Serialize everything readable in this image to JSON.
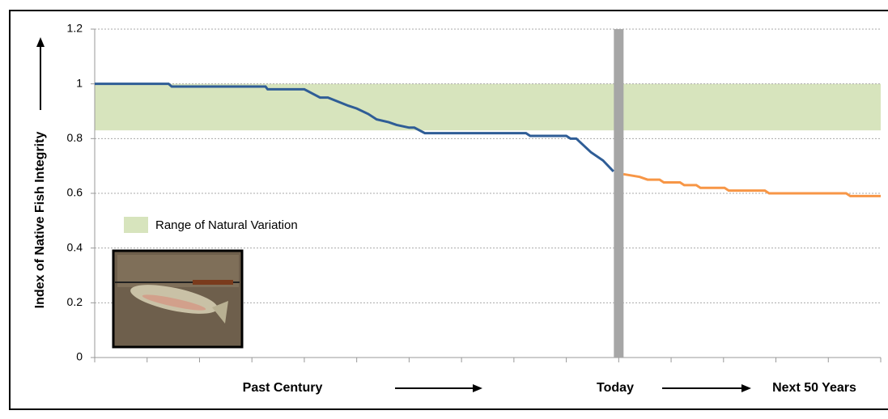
{
  "chart_data": {
    "type": "line",
    "y_label": "Index of Native Fish Integrity",
    "ylim": [
      0,
      1.2
    ],
    "yticks": [
      0,
      0.2,
      0.4,
      0.6,
      0.8,
      1,
      1.2
    ],
    "xlim": [
      0,
      15
    ],
    "xticks": [
      0,
      1,
      2,
      3,
      4,
      5,
      6,
      7,
      8,
      9,
      10,
      11,
      12,
      13,
      14,
      15
    ],
    "grid": true,
    "bands": [
      {
        "name": "Range of Natural Variation",
        "from": 0.83,
        "to": 1.0,
        "color": "#d7e4bd"
      }
    ],
    "today_x": 10,
    "bottom_labels": [
      "Past Century",
      "Today",
      "Next 50 Years"
    ],
    "series": [
      {
        "color": "#2f5d96",
        "x": [
          0,
          1.41,
          1.47,
          3.26,
          3.3,
          4.0,
          4.3,
          4.45,
          4.84,
          5.0,
          5.22,
          5.38,
          5.61,
          5.76,
          6.0,
          6.1,
          6.3,
          8.23,
          8.31,
          9.0,
          9.08,
          9.19,
          9.47,
          9.7,
          9.9
        ],
        "values": [
          1.0,
          1.0,
          0.99,
          0.99,
          0.98,
          0.98,
          0.95,
          0.95,
          0.92,
          0.91,
          0.89,
          0.87,
          0.86,
          0.85,
          0.84,
          0.84,
          0.82,
          0.82,
          0.81,
          0.81,
          0.8,
          0.8,
          0.75,
          0.72,
          0.68
        ]
      },
      {
        "color": "#f79646",
        "x": [
          10.09,
          10.4,
          10.55,
          10.78,
          10.86,
          11.17,
          11.25,
          11.48,
          11.56,
          12.02,
          12.1,
          12.79,
          12.87,
          14.34,
          14.42,
          15
        ],
        "values": [
          0.67,
          0.66,
          0.65,
          0.65,
          0.64,
          0.64,
          0.63,
          0.63,
          0.62,
          0.62,
          0.61,
          0.61,
          0.6,
          0.6,
          0.59,
          0.59
        ]
      }
    ]
  }
}
